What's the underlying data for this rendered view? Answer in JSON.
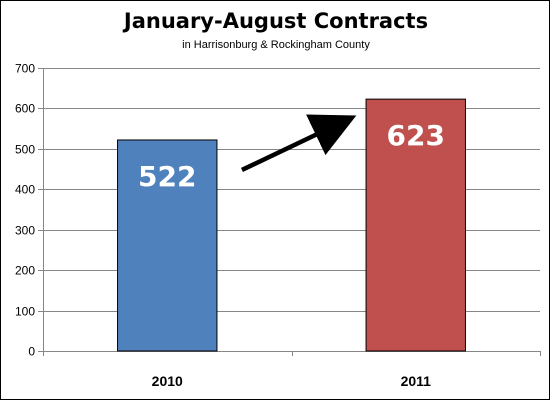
{
  "chart_data": {
    "type": "bar",
    "title": "January-August Contracts",
    "subtitle": "in Harrisonburg & Rockingham County",
    "xlabel": "",
    "ylabel": "",
    "categories": [
      "2010",
      "2011"
    ],
    "values": [
      522,
      623
    ],
    "data_labels": [
      "522",
      "623"
    ],
    "bar_colors": [
      "#4f81bd",
      "#c0504d"
    ],
    "ylim": [
      0,
      700
    ],
    "y_ticks": [
      0,
      100,
      200,
      300,
      400,
      500,
      600,
      700
    ],
    "y_tick_labels": [
      "0",
      "100",
      "200",
      "300",
      "400",
      "500",
      "600",
      "700"
    ],
    "grid": true,
    "legend": "none",
    "annotations": [
      {
        "type": "arrow",
        "from": "2010",
        "to": "2011"
      }
    ]
  }
}
